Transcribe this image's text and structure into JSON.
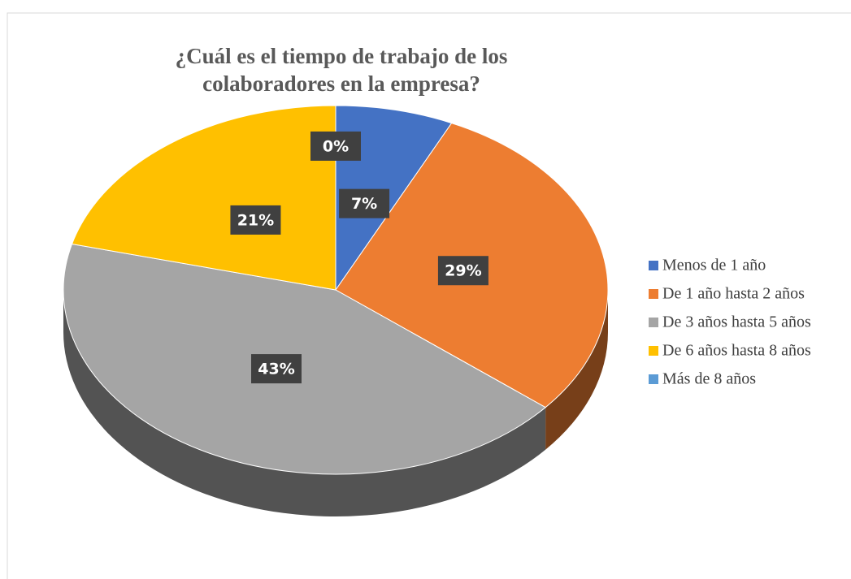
{
  "chart_data": {
    "type": "pie",
    "title": "¿Cuál es el tiempo de trabajo de los colaboradores en la empresa?",
    "categories": [
      "Menos de 1 año",
      "De 1 año hasta 2 años",
      "De 3 años hasta 5 años",
      "De 6 años hasta 8 años",
      "Más de 8 años"
    ],
    "values": [
      7,
      29,
      43,
      21,
      0
    ],
    "value_labels": [
      "7%",
      "29%",
      "43%",
      "21%",
      "0%"
    ],
    "colors": [
      "#4472c4",
      "#ed7d31",
      "#a5a5a5",
      "#ffc000",
      "#5b9bd5"
    ],
    "legend": "right"
  }
}
